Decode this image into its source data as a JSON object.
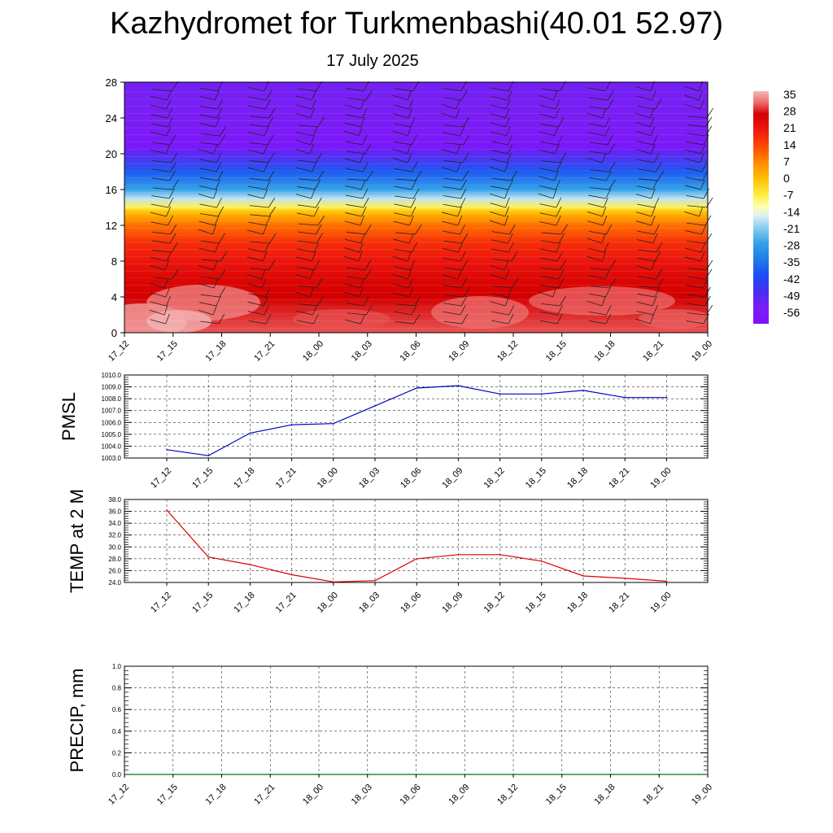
{
  "header": {
    "title": "Kazhydromet for Turkmenbashi(40.01 52.97)",
    "date": "17 July 2025"
  },
  "time_labels": [
    "17_12",
    "17_15",
    "17_18",
    "17_21",
    "18_00",
    "18_03",
    "18_06",
    "18_09",
    "18_12",
    "18_15",
    "18_18",
    "18_21",
    "19_00"
  ],
  "chart_data": [
    {
      "type": "heatmap",
      "id": "temperature-wind-profile",
      "y_ticks": [
        0,
        4,
        8,
        12,
        16,
        20,
        24,
        28
      ],
      "ylim": [
        0,
        28
      ],
      "x": [
        "17_12",
        "17_15",
        "17_18",
        "17_21",
        "18_00",
        "18_03",
        "18_06",
        "18_09",
        "18_12",
        "18_15",
        "18_18",
        "18_21",
        "19_00"
      ],
      "colorbar_labels": [
        "35",
        "28",
        "21",
        "14",
        "7",
        "0",
        "-7",
        "-14",
        "-21",
        "-28",
        "-35",
        "-42",
        "-49",
        "-56"
      ],
      "colorbar_range": [
        -63,
        38
      ],
      "temperature_profile": [
        {
          "level": 0,
          "value": 32
        },
        {
          "level": 2,
          "value": 30
        },
        {
          "level": 4,
          "value": 28
        },
        {
          "level": 6,
          "value": 26
        },
        {
          "level": 8,
          "value": 22
        },
        {
          "level": 10,
          "value": 18
        },
        {
          "level": 12,
          "value": 10
        },
        {
          "level": 13.5,
          "value": 0
        },
        {
          "level": 14,
          "value": -8
        },
        {
          "level": 15,
          "value": -18
        },
        {
          "level": 16,
          "value": -28
        },
        {
          "level": 18,
          "value": -40
        },
        {
          "level": 20,
          "value": -52
        },
        {
          "level": 21,
          "value": -60
        },
        {
          "level": 22,
          "value": -58
        },
        {
          "level": 24,
          "value": -56
        },
        {
          "level": 28,
          "value": -55
        }
      ],
      "wind_barbs": "present at every time step and level"
    },
    {
      "type": "line",
      "id": "pmsl",
      "ylabel": "PMSL",
      "x": [
        "17_12",
        "17_15",
        "17_18",
        "17_21",
        "18_00",
        "18_03",
        "18_06",
        "18_09",
        "18_12",
        "18_15",
        "18_18",
        "18_21",
        "19_00"
      ],
      "y_ticks": [
        "1003.0",
        "1004.0",
        "1005.0",
        "1006.0",
        "1007.0",
        "1008.0",
        "1009.0",
        "1010.0"
      ],
      "ylim": [
        1003.0,
        1010.0
      ],
      "series": [
        {
          "color": "#0000cc",
          "values": [
            1003.7,
            1003.2,
            1005.1,
            1005.8,
            1005.9,
            1007.4,
            1008.9,
            1009.1,
            1008.4,
            1008.4,
            1008.7,
            1008.1,
            1008.1
          ]
        }
      ],
      "grid": true
    },
    {
      "type": "line",
      "id": "temp2m",
      "ylabel": "TEMP at 2 M",
      "x": [
        "17_12",
        "17_15",
        "17_18",
        "17_21",
        "18_00",
        "18_03",
        "18_06",
        "18_09",
        "18_12",
        "18_15",
        "18_18",
        "18_21",
        "19_00"
      ],
      "y_ticks": [
        "24.0",
        "26.0",
        "28.0",
        "30.0",
        "32.0",
        "34.0",
        "36.0",
        "38.0"
      ],
      "ylim": [
        24.0,
        38.0
      ],
      "series": [
        {
          "color": "#dd0000",
          "values": [
            36.2,
            28.3,
            27.0,
            25.3,
            24.1,
            24.3,
            28.0,
            28.7,
            28.7,
            27.6,
            25.1,
            24.7,
            24.2
          ]
        }
      ],
      "grid": true
    },
    {
      "type": "line",
      "id": "precip",
      "ylabel": "PRECIP, mm",
      "x": [
        "17_12",
        "17_15",
        "17_18",
        "17_21",
        "18_00",
        "18_03",
        "18_06",
        "18_09",
        "18_12",
        "18_15",
        "18_18",
        "18_21",
        "19_00"
      ],
      "y_ticks": [
        "0.0",
        "0.2",
        "0.4",
        "0.6",
        "0.8",
        "1.0"
      ],
      "ylim": [
        0.0,
        1.0
      ],
      "series": [
        {
          "color": "#007700",
          "values": [
            0,
            0,
            0,
            0,
            0,
            0,
            0,
            0,
            0,
            0,
            0,
            0,
            0
          ]
        }
      ],
      "grid": true
    }
  ]
}
